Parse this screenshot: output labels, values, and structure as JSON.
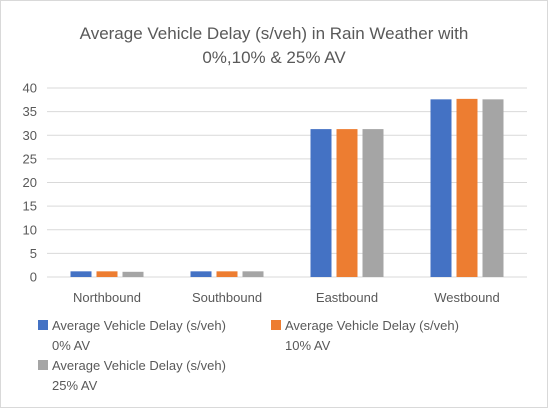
{
  "chart_data": {
    "type": "bar",
    "title_lines": [
      "Average Vehicle Delay (s/veh) in Rain Weather with",
      "0%,10% & 25% AV"
    ],
    "categories": [
      "Northbound",
      "Southbound",
      "Eastbound",
      "Westbound"
    ],
    "series": [
      {
        "name_lines": [
          "Average Vehicle Delay (s/veh)",
          "0% AV"
        ],
        "color": "#4472c4",
        "values": [
          1.2,
          1.2,
          31.3,
          37.6
        ]
      },
      {
        "name_lines": [
          "Average Vehicle Delay (s/veh)",
          "10% AV"
        ],
        "color": "#ed7d31",
        "values": [
          1.2,
          1.2,
          31.3,
          37.7
        ]
      },
      {
        "name_lines": [
          "Average Vehicle Delay (s/veh)",
          "25% AV"
        ],
        "color": "#a5a5a5",
        "values": [
          1.1,
          1.2,
          31.3,
          37.6
        ]
      }
    ],
    "ylim": [
      0,
      40
    ],
    "yticks": [
      0,
      5,
      10,
      15,
      20,
      25,
      30,
      35,
      40
    ],
    "grid": true,
    "legend_position": "bottom"
  }
}
